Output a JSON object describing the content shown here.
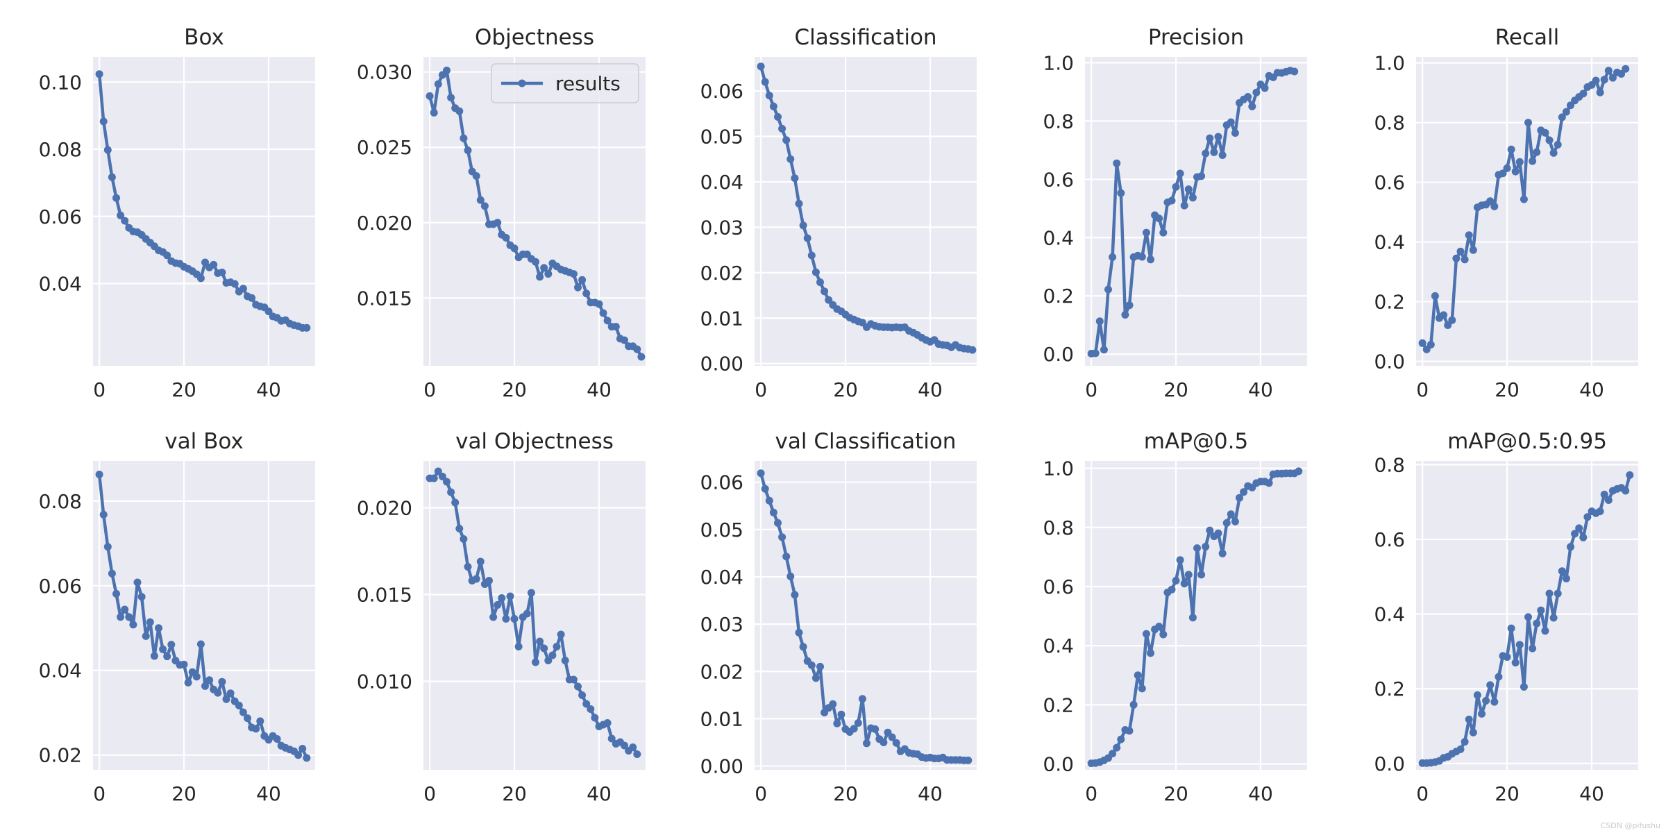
{
  "style": {
    "axes_bg": "#eaeaf2",
    "grid_color": "#ffffff",
    "line_color": "#4c72b0",
    "text_color": "#262626"
  },
  "watermark": "CSDN @pifushu",
  "chart_data": [
    {
      "type": "line",
      "title": "Box",
      "xlim": [
        -1.5,
        51
      ],
      "ylim": [
        0.0155,
        0.1075
      ],
      "xticks": [
        0,
        20,
        40
      ],
      "yticks": [
        0.04,
        0.06,
        0.08,
        0.1
      ],
      "ytick_labels": [
        "0.04",
        "0.06",
        "0.08",
        "0.10"
      ],
      "grid": true,
      "series": [
        {
          "x_start": 0,
          "values": [
            0.1024,
            0.0883,
            0.0798,
            0.0717,
            0.0655,
            0.0603,
            0.0587,
            0.0566,
            0.0555,
            0.0553,
            0.0545,
            0.0533,
            0.0522,
            0.0511,
            0.0499,
            0.0494,
            0.0484,
            0.0467,
            0.0461,
            0.0459,
            0.045,
            0.0444,
            0.0437,
            0.0428,
            0.0416,
            0.0463,
            0.0448,
            0.0456,
            0.0431,
            0.0433,
            0.0402,
            0.0404,
            0.0399,
            0.0376,
            0.0385,
            0.0362,
            0.0357,
            0.0337,
            0.0332,
            0.0329,
            0.0317,
            0.0302,
            0.0298,
            0.0289,
            0.0291,
            0.0281,
            0.0276,
            0.0273,
            0.0268,
            0.0268
          ]
        }
      ]
    },
    {
      "type": "line",
      "title": "Objectness",
      "xlim": [
        -1.5,
        51
      ],
      "ylim": [
        0.0105,
        0.031
      ],
      "xticks": [
        0,
        20,
        40
      ],
      "yticks": [
        0.015,
        0.02,
        0.025,
        0.03
      ],
      "ytick_labels": [
        "0.015",
        "0.020",
        "0.025",
        "0.030"
      ],
      "grid": true,
      "legend": {
        "labels": [
          "results"
        ],
        "location": "upper right"
      },
      "series": [
        {
          "name": "results",
          "x_start": 0,
          "values": [
            0.0284,
            0.0273,
            0.0292,
            0.0298,
            0.0301,
            0.0283,
            0.0276,
            0.0274,
            0.0256,
            0.0248,
            0.0234,
            0.0231,
            0.0215,
            0.0211,
            0.0199,
            0.0199,
            0.02,
            0.0192,
            0.019,
            0.0185,
            0.0183,
            0.0177,
            0.0179,
            0.0179,
            0.0176,
            0.0174,
            0.0164,
            0.017,
            0.0166,
            0.0173,
            0.0171,
            0.0169,
            0.0168,
            0.0167,
            0.0166,
            0.0157,
            0.0162,
            0.0153,
            0.0147,
            0.0147,
            0.0146,
            0.014,
            0.0135,
            0.0131,
            0.0131,
            0.0123,
            0.0122,
            0.0118,
            0.0118,
            0.0116,
            0.0111
          ]
        }
      ]
    },
    {
      "type": "line",
      "title": "Classification",
      "xlim": [
        -1.5,
        51
      ],
      "ylim": [
        -0.0005,
        0.0675
      ],
      "xticks": [
        0,
        20,
        40
      ],
      "yticks": [
        0.0,
        0.01,
        0.02,
        0.03,
        0.04,
        0.05,
        0.06
      ],
      "ytick_labels": [
        "0.00",
        "0.01",
        "0.02",
        "0.03",
        "0.04",
        "0.05",
        "0.06"
      ],
      "grid": true,
      "series": [
        {
          "x_start": 0,
          "values": [
            0.0654,
            0.062,
            0.059,
            0.0566,
            0.0543,
            0.0517,
            0.0492,
            0.045,
            0.0408,
            0.0352,
            0.0304,
            0.0276,
            0.0238,
            0.0201,
            0.0179,
            0.0159,
            0.014,
            0.0129,
            0.012,
            0.0115,
            0.0108,
            0.0101,
            0.0097,
            0.0093,
            0.009,
            0.008,
            0.0087,
            0.0083,
            0.0081,
            0.008,
            0.008,
            0.0079,
            0.008,
            0.0079,
            0.008,
            0.0072,
            0.0068,
            0.0063,
            0.0057,
            0.0052,
            0.0048,
            0.0052,
            0.0043,
            0.0041,
            0.004,
            0.0036,
            0.0041,
            0.0035,
            0.0033,
            0.0032,
            0.003
          ]
        }
      ]
    },
    {
      "type": "line",
      "title": "Precision",
      "xlim": [
        -1.5,
        51
      ],
      "ylim": [
        -0.04,
        1.02
      ],
      "xticks": [
        0,
        20,
        40
      ],
      "yticks": [
        0.0,
        0.2,
        0.4,
        0.6,
        0.8,
        1.0
      ],
      "ytick_labels": [
        "0.0",
        "0.2",
        "0.4",
        "0.6",
        "0.8",
        "1.0"
      ],
      "grid": true,
      "series": [
        {
          "x_start": 0,
          "values": [
            0.002,
            0.003,
            0.113,
            0.015,
            0.222,
            0.333,
            0.655,
            0.553,
            0.135,
            0.168,
            0.333,
            0.338,
            0.334,
            0.417,
            0.325,
            0.477,
            0.466,
            0.417,
            0.521,
            0.527,
            0.574,
            0.62,
            0.51,
            0.566,
            0.537,
            0.608,
            0.611,
            0.689,
            0.741,
            0.693,
            0.746,
            0.683,
            0.786,
            0.796,
            0.759,
            0.862,
            0.874,
            0.883,
            0.85,
            0.898,
            0.926,
            0.913,
            0.955,
            0.95,
            0.966,
            0.965,
            0.969,
            0.973,
            0.97
          ]
        }
      ]
    },
    {
      "type": "line",
      "title": "Recall",
      "xlim": [
        -1.5,
        51
      ],
      "ylim": [
        -0.015,
        1.02
      ],
      "xticks": [
        0,
        20,
        40
      ],
      "yticks": [
        0.0,
        0.2,
        0.4,
        0.6,
        0.8,
        1.0
      ],
      "ytick_labels": [
        "0.0",
        "0.2",
        "0.4",
        "0.6",
        "0.8",
        "1.0"
      ],
      "grid": true,
      "series": [
        {
          "x_start": 0,
          "values": [
            0.061,
            0.04,
            0.056,
            0.219,
            0.145,
            0.155,
            0.121,
            0.138,
            0.345,
            0.368,
            0.341,
            0.423,
            0.373,
            0.516,
            0.523,
            0.525,
            0.537,
            0.519,
            0.625,
            0.63,
            0.647,
            0.71,
            0.636,
            0.668,
            0.543,
            0.8,
            0.671,
            0.701,
            0.774,
            0.766,
            0.741,
            0.698,
            0.726,
            0.818,
            0.836,
            0.858,
            0.874,
            0.886,
            0.897,
            0.919,
            0.926,
            0.941,
            0.901,
            0.944,
            0.974,
            0.95,
            0.968,
            0.963,
            0.98
          ]
        }
      ]
    },
    {
      "type": "line",
      "title": "val Box",
      "xlim": [
        -1.5,
        51
      ],
      "ylim": [
        0.0165,
        0.0895
      ],
      "xticks": [
        0,
        20,
        40
      ],
      "yticks": [
        0.02,
        0.04,
        0.06,
        0.08
      ],
      "ytick_labels": [
        "0.02",
        "0.04",
        "0.06",
        "0.08"
      ],
      "grid": true,
      "series": [
        {
          "x_start": 0,
          "values": [
            0.0863,
            0.0768,
            0.0692,
            0.0629,
            0.0581,
            0.0526,
            0.0544,
            0.0526,
            0.0508,
            0.0608,
            0.0574,
            0.0481,
            0.0514,
            0.0434,
            0.05,
            0.045,
            0.0433,
            0.0461,
            0.0423,
            0.0413,
            0.0414,
            0.0371,
            0.0396,
            0.0385,
            0.0462,
            0.0363,
            0.0377,
            0.0355,
            0.0347,
            0.0373,
            0.0332,
            0.0346,
            0.0327,
            0.0317,
            0.0301,
            0.0287,
            0.0265,
            0.0262,
            0.028,
            0.0245,
            0.0236,
            0.0245,
            0.0238,
            0.0222,
            0.0217,
            0.0213,
            0.0209,
            0.02,
            0.0215,
            0.0193
          ]
        }
      ]
    },
    {
      "type": "line",
      "title": "val Objectness",
      "xlim": [
        -1.5,
        51
      ],
      "ylim": [
        0.0049,
        0.0227
      ],
      "xticks": [
        0,
        20,
        40
      ],
      "yticks": [
        0.01,
        0.015,
        0.02
      ],
      "ytick_labels": [
        "0.010",
        "0.015",
        "0.020"
      ],
      "grid": true,
      "series": [
        {
          "x_start": 0,
          "values": [
            0.0217,
            0.0217,
            0.0221,
            0.0218,
            0.0215,
            0.0209,
            0.0203,
            0.0188,
            0.0182,
            0.0166,
            0.0158,
            0.0159,
            0.0169,
            0.0156,
            0.0158,
            0.0137,
            0.0144,
            0.0148,
            0.0136,
            0.0149,
            0.0136,
            0.012,
            0.0137,
            0.0139,
            0.0151,
            0.0111,
            0.0123,
            0.0119,
            0.0112,
            0.0115,
            0.012,
            0.0127,
            0.0112,
            0.0101,
            0.0101,
            0.0097,
            0.0092,
            0.0087,
            0.0084,
            0.0079,
            0.0074,
            0.0075,
            0.0076,
            0.0067,
            0.0064,
            0.0065,
            0.0063,
            0.006,
            0.0062,
            0.0058
          ]
        }
      ]
    },
    {
      "type": "line",
      "title": "val Classification",
      "xlim": [
        -1.5,
        51
      ],
      "ylim": [
        -0.0008,
        0.0645
      ],
      "xticks": [
        0,
        20,
        40
      ],
      "yticks": [
        0.0,
        0.01,
        0.02,
        0.03,
        0.04,
        0.05,
        0.06
      ],
      "ytick_labels": [
        "0.00",
        "0.01",
        "0.02",
        "0.03",
        "0.04",
        "0.05",
        "0.06"
      ],
      "grid": true,
      "series": [
        {
          "x_start": 0,
          "values": [
            0.0619,
            0.0586,
            0.0561,
            0.0536,
            0.0514,
            0.0484,
            0.0443,
            0.0401,
            0.0362,
            0.0282,
            0.0252,
            0.0222,
            0.0213,
            0.0186,
            0.021,
            0.0113,
            0.0123,
            0.0131,
            0.009,
            0.0109,
            0.0078,
            0.0072,
            0.0079,
            0.0091,
            0.0142,
            0.0048,
            0.008,
            0.0078,
            0.0057,
            0.005,
            0.0071,
            0.0061,
            0.0049,
            0.0031,
            0.0036,
            0.0028,
            0.0026,
            0.0025,
            0.0019,
            0.0017,
            0.0018,
            0.0016,
            0.0016,
            0.0018,
            0.0013,
            0.0013,
            0.0013,
            0.0013,
            0.0012,
            0.0012
          ]
        }
      ]
    },
    {
      "type": "line",
      "title": "mAP@0.5",
      "xlim": [
        -1.5,
        51
      ],
      "ylim": [
        -0.02,
        1.025
      ],
      "xticks": [
        0,
        20,
        40
      ],
      "yticks": [
        0.0,
        0.2,
        0.4,
        0.6,
        0.8,
        1.0
      ],
      "ytick_labels": [
        "0.0",
        "0.2",
        "0.4",
        "0.6",
        "0.8",
        "1.0"
      ],
      "grid": true,
      "series": [
        {
          "x_start": 0,
          "values": [
            0.002,
            0.003,
            0.006,
            0.012,
            0.02,
            0.035,
            0.055,
            0.083,
            0.115,
            0.112,
            0.2,
            0.3,
            0.255,
            0.44,
            0.375,
            0.455,
            0.465,
            0.438,
            0.58,
            0.59,
            0.62,
            0.69,
            0.61,
            0.64,
            0.495,
            0.73,
            0.64,
            0.735,
            0.79,
            0.77,
            0.78,
            0.712,
            0.815,
            0.845,
            0.82,
            0.9,
            0.92,
            0.94,
            0.935,
            0.95,
            0.955,
            0.955,
            0.95,
            0.98,
            0.982,
            0.982,
            0.983,
            0.983,
            0.983,
            0.99
          ]
        }
      ]
    },
    {
      "type": "line",
      "title": "mAP@0.5:0.95",
      "xlim": [
        -1.5,
        51
      ],
      "ylim": [
        -0.017,
        0.81
      ],
      "xticks": [
        0,
        20,
        40
      ],
      "yticks": [
        0.0,
        0.2,
        0.4,
        0.6,
        0.8
      ],
      "ytick_labels": [
        "0.0",
        "0.2",
        "0.4",
        "0.6",
        "0.8"
      ],
      "grid": true,
      "series": [
        {
          "x_start": 0,
          "values": [
            0.001,
            0.001,
            0.002,
            0.004,
            0.007,
            0.015,
            0.018,
            0.026,
            0.032,
            0.038,
            0.058,
            0.118,
            0.083,
            0.183,
            0.133,
            0.168,
            0.21,
            0.165,
            0.232,
            0.288,
            0.285,
            0.362,
            0.27,
            0.318,
            0.205,
            0.392,
            0.308,
            0.375,
            0.41,
            0.355,
            0.455,
            0.39,
            0.455,
            0.515,
            0.495,
            0.58,
            0.615,
            0.63,
            0.605,
            0.66,
            0.675,
            0.67,
            0.675,
            0.72,
            0.705,
            0.73,
            0.735,
            0.738,
            0.73,
            0.772
          ]
        }
      ]
    }
  ]
}
